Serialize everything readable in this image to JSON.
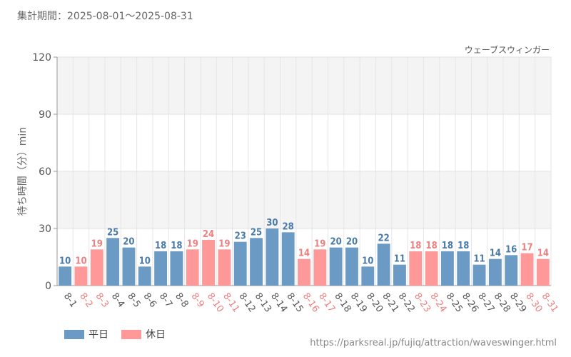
{
  "header": {
    "period_text": "集計期間：2025-08-01～2025-08-31"
  },
  "attraction_label": "ウェーブスウィンガー",
  "legend": {
    "weekday": "平日",
    "holiday": "休日"
  },
  "footer": {
    "url": "https://parksreal.jp/fujiq/attraction/waveswinger.html"
  },
  "colors": {
    "weekday": "#6b9bc4",
    "holiday": "#ff9999",
    "weekday_text": "#4a7aa8",
    "holiday_text": "#ee8080"
  },
  "chart_data": {
    "type": "bar",
    "title": "",
    "ylabel": "待ち時間（分）min",
    "xlabel": "",
    "ylim": [
      0,
      120
    ],
    "yticks": [
      0,
      30,
      60,
      90,
      120
    ],
    "categories": [
      "8-1",
      "8-2",
      "8-3",
      "8-4",
      "8-5",
      "8-6",
      "8-7",
      "8-8",
      "8-9",
      "8-10",
      "8-11",
      "8-12",
      "8-13",
      "8-14",
      "8-15",
      "8-16",
      "8-17",
      "8-18",
      "8-19",
      "8-20",
      "8-21",
      "8-22",
      "8-23",
      "8-24",
      "8-25",
      "8-26",
      "8-27",
      "8-28",
      "8-29",
      "8-30",
      "8-31"
    ],
    "values": [
      10,
      10,
      19,
      25,
      20,
      10,
      18,
      18,
      19,
      24,
      19,
      23,
      25,
      30,
      28,
      14,
      19,
      20,
      20,
      10,
      22,
      11,
      18,
      18,
      18,
      18,
      11,
      14,
      16,
      17,
      14
    ],
    "day_type": [
      "weekday",
      "holiday",
      "holiday",
      "weekday",
      "weekday",
      "weekday",
      "weekday",
      "weekday",
      "holiday",
      "holiday",
      "holiday",
      "weekday",
      "weekday",
      "weekday",
      "weekday",
      "holiday",
      "holiday",
      "weekday",
      "weekday",
      "weekday",
      "weekday",
      "weekday",
      "holiday",
      "holiday",
      "weekday",
      "weekday",
      "weekday",
      "weekday",
      "weekday",
      "holiday",
      "holiday"
    ],
    "legend_position": "bottom-left",
    "grid": true
  }
}
